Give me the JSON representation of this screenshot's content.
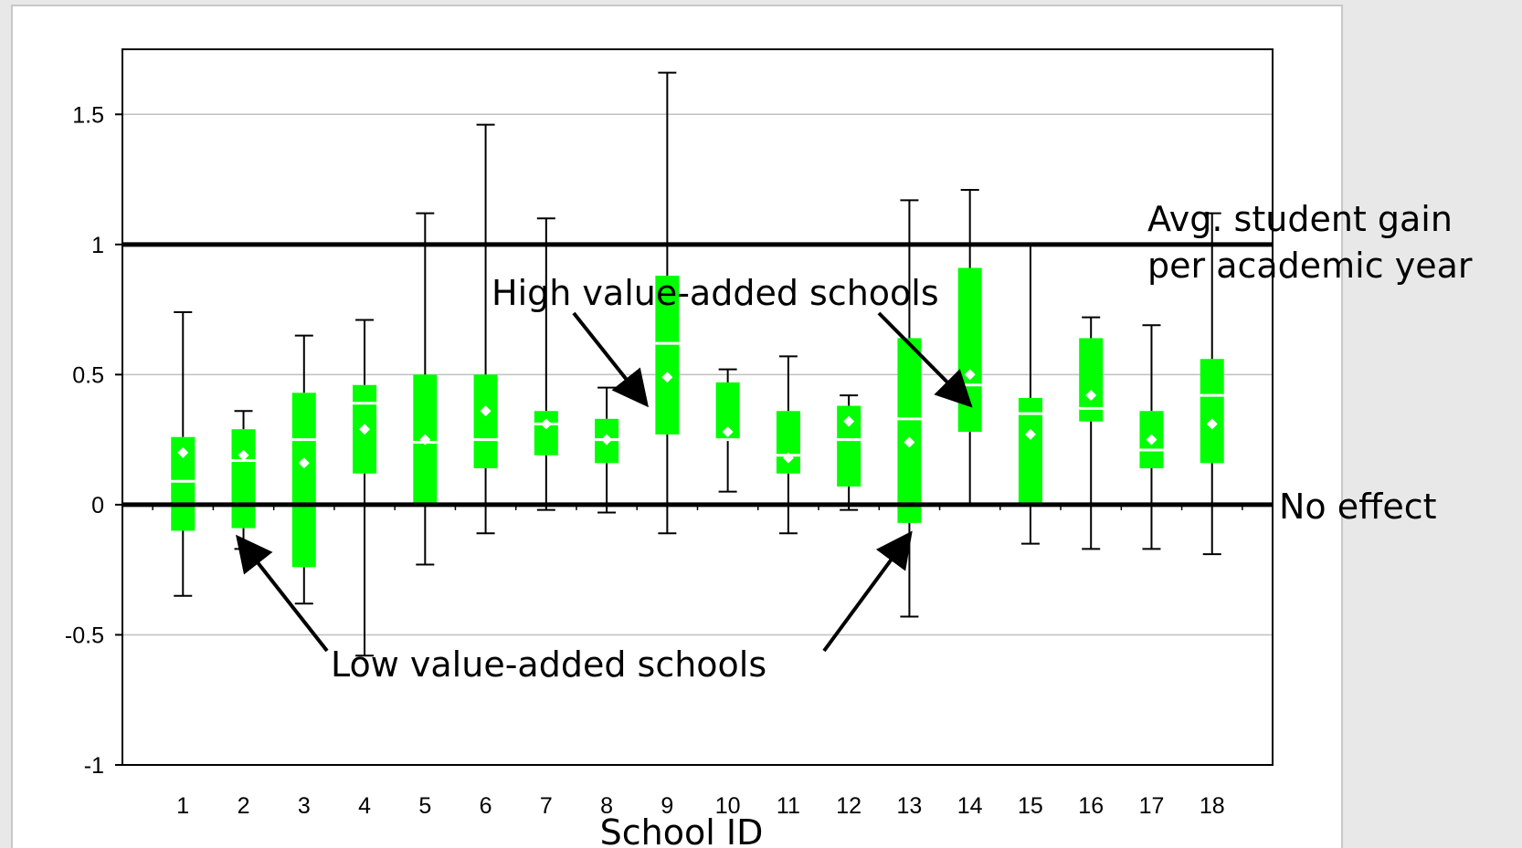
{
  "chart_data": {
    "type": "box",
    "title": "",
    "xlabel": "School ID",
    "ylabel": "",
    "ylim": [
      -1,
      1.75
    ],
    "yticks": [
      1.5,
      1,
      0.5,
      0,
      -0.5,
      -1
    ],
    "ytick_labels": [
      "1.5",
      "1",
      "0.5",
      "0",
      "-0.5",
      "-1"
    ],
    "grid": true,
    "categories": [
      "1",
      "2",
      "3",
      "4",
      "5",
      "6",
      "7",
      "8",
      "9",
      "10",
      "11",
      "12",
      "13",
      "14",
      "15",
      "16",
      "17",
      "18"
    ],
    "series": [
      {
        "box_color": "#00ff00",
        "whisker_low": [
          -0.35,
          -0.17,
          -0.38,
          -0.58,
          -0.23,
          -0.11,
          -0.02,
          -0.03,
          -0.11,
          0.05,
          -0.11,
          -0.02,
          -0.43,
          0.0,
          -0.15,
          -0.17,
          -0.17,
          -0.19
        ],
        "box_low": [
          -0.1,
          -0.09,
          -0.24,
          0.12,
          0.0,
          0.14,
          0.19,
          0.16,
          0.27,
          0.25,
          0.12,
          0.07,
          -0.07,
          0.28,
          0.0,
          0.32,
          0.14,
          0.16
        ],
        "median": [
          0.09,
          0.17,
          0.25,
          0.39,
          0.24,
          0.25,
          0.31,
          0.25,
          0.62,
          0.25,
          0.19,
          0.25,
          0.33,
          0.46,
          0.35,
          0.37,
          0.21,
          0.42
        ],
        "box_high": [
          0.26,
          0.29,
          0.43,
          0.46,
          0.5,
          0.5,
          0.36,
          0.33,
          0.88,
          0.47,
          0.36,
          0.38,
          0.64,
          0.91,
          0.41,
          0.64,
          0.36,
          0.56
        ],
        "whisker_high": [
          0.74,
          0.36,
          0.65,
          0.71,
          1.12,
          1.46,
          1.1,
          0.45,
          1.66,
          0.52,
          0.57,
          0.42,
          1.17,
          1.21,
          1.0,
          0.72,
          0.69,
          1.12
        ],
        "mean": [
          0.2,
          0.19,
          0.16,
          0.29,
          0.25,
          0.36,
          0.31,
          0.25,
          0.49,
          0.28,
          0.18,
          0.32,
          0.24,
          0.5,
          0.27,
          0.42,
          0.25,
          0.31
        ]
      }
    ],
    "reference_lines": [
      {
        "y": 1.0,
        "label_line1": "Avg. student gain",
        "label_line2": "per academic year"
      },
      {
        "y": 0.0,
        "label": "No effect"
      }
    ],
    "annotations": [
      {
        "text": "High value-added schools",
        "arrows_to": [
          "9",
          "14"
        ]
      },
      {
        "text": "Low value-added schools",
        "arrows_to": [
          "2",
          "13"
        ]
      }
    ]
  }
}
